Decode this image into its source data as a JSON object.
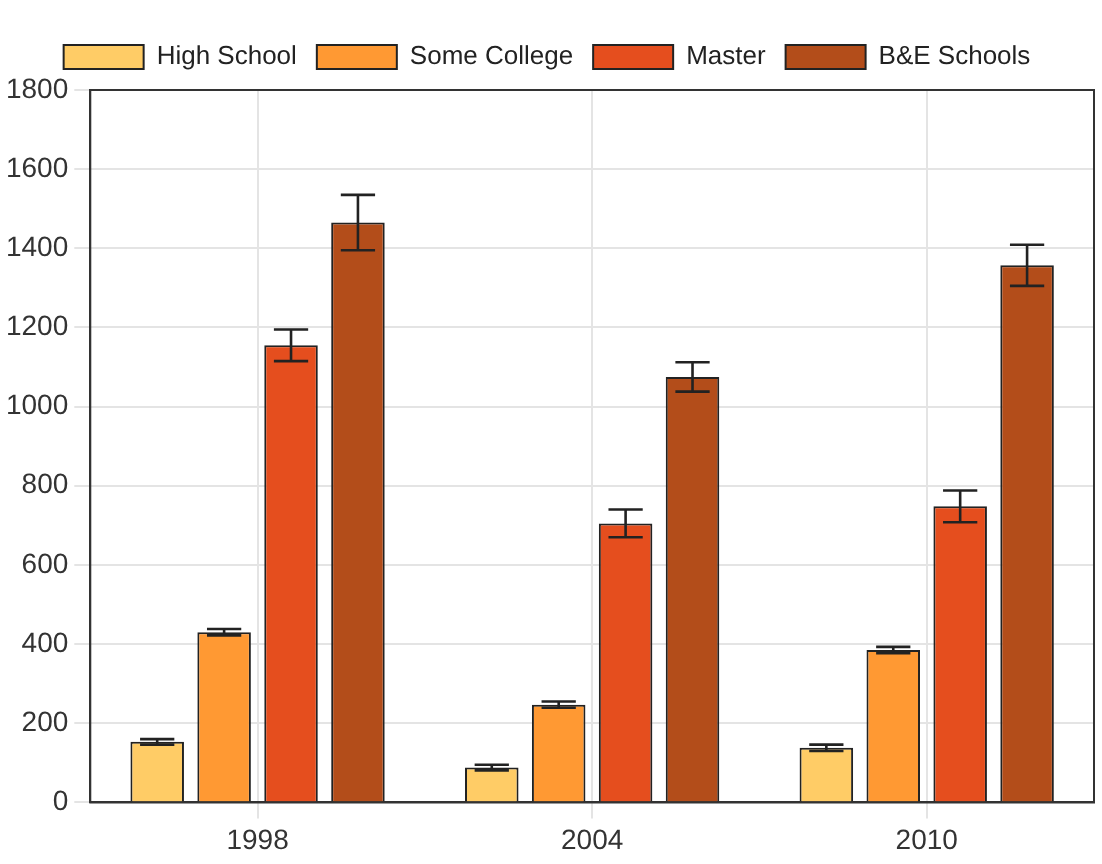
{
  "chart_data": {
    "type": "bar",
    "categories": [
      "1998",
      "2004",
      "2010"
    ],
    "series": [
      {
        "name": "High School",
        "color": "#ffcc66",
        "values": [
          153,
          88,
          138
        ],
        "errors": [
          7,
          7,
          8
        ]
      },
      {
        "name": "Some College",
        "color": "#ff9933",
        "values": [
          430,
          247,
          385
        ],
        "errors": [
          8,
          8,
          8
        ]
      },
      {
        "name": "Master",
        "color": "#e54e1e",
        "values": [
          1155,
          705,
          748
        ],
        "errors": [
          40,
          35,
          40
        ]
      },
      {
        "name": "B&E Schools",
        "color": "#b34d1a",
        "values": [
          1465,
          1075,
          1357
        ],
        "errors": [
          70,
          37,
          52
        ]
      }
    ],
    "ylim": [
      0,
      1800
    ],
    "yticks": [
      0,
      200,
      400,
      600,
      800,
      1000,
      1200,
      1400,
      1600,
      1800
    ],
    "grid": true,
    "legend": "top"
  }
}
